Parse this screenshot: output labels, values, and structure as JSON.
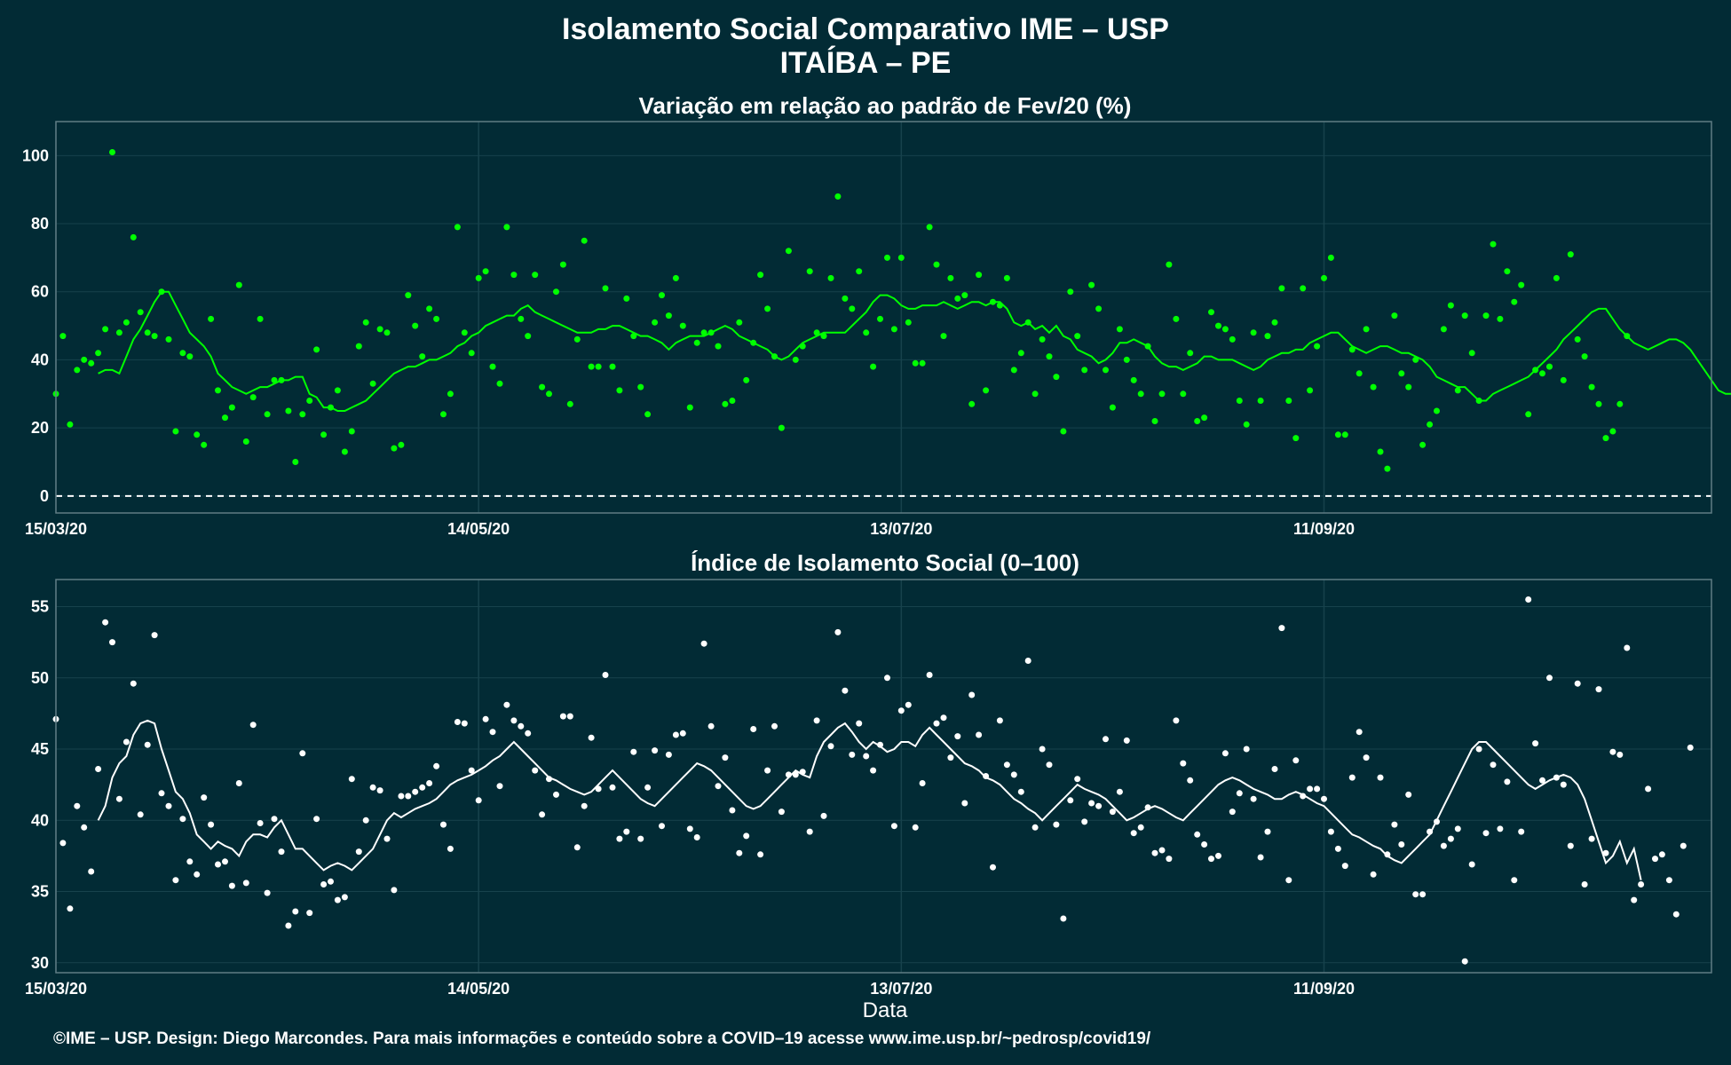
{
  "header": {
    "title_line1": "Isolamento Social Comparativo IME – USP",
    "title_line2": "ITAÍBA – PE"
  },
  "footer": {
    "caption": "©IME – USP. Design: Diego Marcondes. Para mais informações e conteúdo sobre a COVID–19 acesse www.ime.usp.br/~pedrosp/covid19/"
  },
  "colors": {
    "background": "#022b35",
    "panel_border": "#5f7c84",
    "grid": "#17424c",
    "top_series": "#00ff00",
    "bottom_series": "#ffffff"
  },
  "chart_data": [
    {
      "type": "scatter",
      "title": "Variação em relação ao padrão de Fev/20 (%)",
      "xlabel": "",
      "ylabel": "",
      "x_start": "15/03/20",
      "x_end": "05/11/20",
      "x_ticks": [
        "15/03/20",
        "14/05/20",
        "13/07/20",
        "11/09/20"
      ],
      "ylim": [
        -5,
        110
      ],
      "y_ticks": [
        0,
        20,
        40,
        60,
        80,
        100
      ],
      "reference_line": {
        "y": 0,
        "style": "dashed"
      },
      "grid": true,
      "legend": "none",
      "series": [
        {
          "kind": "points",
          "values": [
            30,
            47,
            21,
            37,
            40,
            39,
            42,
            49,
            101,
            48,
            51,
            76,
            54,
            48,
            47,
            60,
            46,
            19,
            42,
            41,
            18,
            15,
            52,
            31,
            23,
            26,
            62,
            16,
            29,
            52,
            24,
            34,
            34,
            25,
            10,
            24,
            28,
            43,
            18,
            26,
            31,
            13,
            19,
            44,
            51,
            33,
            49,
            48,
            14,
            15,
            59,
            50,
            41,
            55,
            52,
            24,
            30,
            79,
            48,
            42,
            64,
            66,
            38,
            33,
            79,
            65,
            52,
            47,
            65,
            32,
            30,
            60,
            68,
            27,
            46,
            75,
            38,
            38,
            61,
            38,
            31,
            58,
            47,
            32,
            24,
            51,
            59,
            53,
            64,
            50,
            26,
            45,
            48,
            48,
            44,
            27,
            28,
            51,
            34,
            45,
            65,
            55,
            41,
            20,
            72,
            40,
            44,
            66,
            48,
            47,
            64,
            88,
            58,
            55,
            66,
            48,
            38,
            52,
            70,
            49,
            70,
            51,
            39,
            39,
            79,
            68,
            47,
            64,
            58,
            59,
            27,
            65,
            31,
            57,
            56,
            64,
            37,
            42,
            51,
            30,
            46,
            41,
            35,
            19,
            60,
            47,
            37,
            62,
            55,
            37,
            26,
            49,
            40,
            34,
            30,
            44,
            22,
            30,
            68,
            52,
            30,
            42,
            22,
            23,
            54,
            50,
            49,
            46,
            28,
            21,
            48,
            28,
            47,
            51,
            61,
            28,
            17,
            61,
            31,
            44,
            64,
            70,
            18,
            18,
            43,
            36,
            49,
            32,
            13,
            8,
            53,
            36,
            32,
            40,
            15,
            21,
            25,
            49,
            56,
            31,
            53,
            42,
            28,
            53,
            74,
            52,
            66,
            57,
            62,
            24,
            37,
            36,
            38,
            64,
            34,
            71,
            46,
            41,
            32,
            27,
            17,
            19,
            27,
            47
          ]
        },
        {
          "kind": "moving_average",
          "values": [
            36,
            37,
            37,
            36,
            41,
            46,
            49,
            53,
            57,
            60,
            60,
            56,
            52,
            48,
            46,
            44,
            41,
            36,
            34,
            32,
            31,
            30,
            31,
            32,
            32,
            33,
            34,
            34,
            35,
            35,
            30,
            29,
            26,
            26,
            25,
            25,
            26,
            27,
            28,
            30,
            32,
            34,
            36,
            37,
            38,
            38,
            39,
            40,
            40,
            41,
            42,
            44,
            45,
            47,
            48,
            50,
            51,
            52,
            53,
            53,
            55,
            56,
            54,
            53,
            52,
            51,
            50,
            49,
            48,
            48,
            48,
            49,
            49,
            50,
            50,
            49,
            48,
            47,
            47,
            46,
            45,
            43,
            45,
            46,
            47,
            47,
            47,
            48,
            49,
            50,
            49,
            47,
            46,
            45,
            44,
            43,
            41,
            40,
            41,
            43,
            45,
            46,
            47,
            48,
            48,
            48,
            48,
            50,
            52,
            54,
            57,
            59,
            59,
            58,
            56,
            55,
            55,
            56,
            56,
            56,
            57,
            56,
            55,
            56,
            57,
            57,
            56,
            57,
            57,
            55,
            51,
            50,
            51,
            49,
            50,
            48,
            50,
            47,
            46,
            43,
            42,
            41,
            39,
            40,
            42,
            45,
            45,
            46,
            45,
            44,
            41,
            39,
            38,
            38,
            37,
            38,
            39,
            41,
            41,
            40,
            40,
            40,
            39,
            38,
            37,
            38,
            40,
            41,
            42,
            42,
            43,
            43,
            45,
            46,
            47,
            48,
            48,
            46,
            44,
            43,
            42,
            43,
            44,
            44,
            43,
            42,
            42,
            41,
            40,
            38,
            35,
            34,
            33,
            32,
            32,
            30,
            28,
            28,
            30,
            31,
            32,
            33,
            34,
            35,
            37,
            39,
            41,
            43,
            46,
            48,
            50,
            52,
            54,
            55,
            55,
            52,
            49,
            47,
            45,
            44,
            43,
            44,
            45,
            46,
            46,
            45,
            43,
            40,
            37,
            34,
            31,
            30,
            30,
            31,
            31,
            33
          ]
        }
      ]
    },
    {
      "type": "scatter",
      "title": "Índice de Isolamento Social (0–100)",
      "xlabel": "Data",
      "ylabel": "",
      "x_start": "15/03/20",
      "x_end": "05/11/20",
      "x_ticks": [
        "15/03/20",
        "14/05/20",
        "13/07/20",
        "11/09/20"
      ],
      "ylim": [
        29.3,
        56.9
      ],
      "y_ticks": [
        30,
        35,
        40,
        45,
        50,
        55
      ],
      "grid": true,
      "legend": "none",
      "series": [
        {
          "kind": "points",
          "values": [
            47.1,
            38.4,
            33.8,
            41.0,
            39.5,
            36.4,
            43.6,
            53.9,
            52.5,
            41.5,
            45.5,
            49.6,
            40.4,
            45.3,
            53.0,
            41.9,
            41.0,
            35.8,
            40.1,
            37.1,
            36.2,
            41.6,
            39.7,
            36.9,
            37.1,
            35.4,
            42.6,
            35.6,
            46.7,
            39.8,
            34.9,
            40.1,
            37.8,
            32.6,
            33.6,
            44.7,
            33.5,
            40.1,
            35.5,
            35.7,
            34.4,
            34.6,
            42.9,
            37.8,
            40.0,
            42.3,
            42.1,
            38.7,
            35.1,
            41.7,
            41.7,
            42.0,
            42.3,
            42.6,
            43.8,
            39.7,
            38.0,
            46.9,
            46.8,
            43.5,
            41.4,
            47.1,
            46.2,
            42.4,
            48.1,
            47.0,
            46.6,
            46.1,
            43.5,
            40.4,
            42.9,
            41.8,
            47.3,
            47.3,
            38.1,
            41.0,
            45.8,
            42.2,
            50.2,
            42.3,
            38.7,
            39.2,
            44.8,
            38.7,
            42.3,
            44.9,
            39.6,
            44.6,
            46.0,
            46.1,
            39.4,
            38.8,
            52.4,
            46.6,
            42.4,
            44.4,
            40.7,
            37.7,
            38.9,
            46.4,
            37.6,
            43.5,
            46.6,
            40.6,
            43.2,
            43.2,
            43.4,
            39.2,
            47.0,
            40.3,
            45.2,
            53.2,
            49.1,
            44.6,
            46.8,
            44.5,
            43.5,
            45.3,
            50.0,
            39.6,
            47.7,
            48.1,
            39.5,
            42.6,
            50.2,
            46.8,
            47.2,
            44.4,
            45.9,
            41.2,
            48.8,
            46.0,
            43.1,
            36.7,
            47.0,
            43.9,
            43.2,
            42.0,
            51.2,
            39.5,
            45.0,
            43.9,
            39.7,
            33.1,
            41.4,
            42.9,
            39.9,
            41.2,
            41.0,
            45.7,
            40.6,
            42.0,
            45.6,
            39.1,
            39.5,
            40.9,
            37.7,
            37.9,
            37.3,
            47.0,
            44.0,
            42.8,
            39.0,
            38.3,
            37.3,
            37.5,
            44.7,
            40.6,
            41.9,
            45.0,
            41.5,
            37.4,
            39.2,
            43.6,
            53.5,
            35.8,
            44.2,
            41.7,
            42.2,
            42.2,
            41.5,
            39.2,
            38.0,
            36.8,
            43.0,
            46.2,
            44.4,
            36.2,
            43.0,
            37.6,
            39.7,
            38.3,
            41.8,
            34.8,
            34.8,
            39.2,
            39.9,
            38.2,
            38.7,
            39.4,
            30.1,
            36.9,
            45.0,
            39.1,
            43.9,
            39.4,
            42.7,
            35.8,
            39.2,
            55.5,
            45.4,
            42.8,
            50.0,
            43.0,
            42.5,
            38.2,
            49.6,
            35.5,
            38.7,
            49.2,
            37.7,
            44.8,
            44.6,
            52.1,
            34.4,
            35.5,
            42.2,
            37.3,
            37.6,
            35.8,
            33.4,
            38.2,
            45.1
          ]
        },
        {
          "kind": "moving_average",
          "values": [
            40.0,
            41.0,
            43.0,
            44.0,
            44.5,
            46.0,
            46.8,
            47.0,
            46.8,
            45.0,
            43.5,
            42.0,
            41.5,
            40.5,
            39.0,
            38.5,
            38.0,
            38.5,
            38.2,
            38.0,
            37.5,
            38.5,
            39.0,
            39.0,
            38.8,
            39.5,
            40.0,
            39.0,
            38.0,
            38.0,
            37.5,
            37.0,
            36.5,
            36.8,
            37.0,
            36.8,
            36.5,
            37.0,
            37.5,
            38.0,
            39.0,
            40.0,
            40.5,
            40.2,
            40.5,
            40.8,
            41.0,
            41.2,
            41.5,
            42.0,
            42.5,
            42.8,
            43.0,
            43.2,
            43.5,
            43.8,
            44.2,
            44.5,
            45.0,
            45.5,
            45.0,
            44.5,
            44.0,
            43.5,
            43.0,
            42.8,
            42.5,
            42.2,
            42.0,
            41.8,
            42.0,
            42.5,
            43.0,
            43.5,
            43.0,
            42.5,
            42.0,
            41.5,
            41.2,
            41.0,
            41.5,
            42.0,
            42.5,
            43.0,
            43.5,
            44.0,
            43.8,
            43.5,
            43.0,
            42.5,
            42.0,
            41.5,
            41.0,
            40.8,
            41.0,
            41.5,
            42.0,
            42.5,
            43.0,
            43.5,
            43.2,
            43.0,
            44.5,
            45.5,
            46.0,
            46.5,
            46.8,
            46.2,
            45.5,
            45.0,
            45.5,
            45.2,
            44.8,
            45.0,
            45.5,
            45.5,
            45.2,
            46.0,
            46.5,
            46.0,
            45.5,
            45.0,
            44.5,
            44.0,
            43.8,
            43.5,
            43.0,
            42.8,
            42.5,
            42.0,
            41.5,
            41.2,
            40.8,
            40.5,
            40.0,
            40.5,
            41.0,
            41.5,
            42.0,
            42.5,
            42.2,
            42.0,
            41.8,
            41.5,
            41.0,
            40.5,
            40.0,
            40.2,
            40.5,
            40.8,
            41.0,
            40.8,
            40.5,
            40.2,
            40.0,
            40.5,
            41.0,
            41.5,
            42.0,
            42.5,
            42.8,
            43.0,
            42.8,
            42.5,
            42.2,
            42.0,
            41.8,
            41.5,
            41.5,
            41.8,
            42.0,
            41.8,
            41.5,
            41.2,
            41.0,
            40.5,
            40.0,
            39.5,
            39.0,
            38.8,
            38.5,
            38.2,
            38.0,
            37.5,
            37.2,
            37.0,
            37.5,
            38.0,
            38.5,
            39.0,
            40.0,
            41.0,
            42.0,
            43.0,
            44.0,
            45.0,
            45.5,
            45.5,
            45.0,
            44.5,
            44.0,
            43.5,
            43.0,
            42.5,
            42.2,
            42.5,
            42.8,
            43.0,
            43.2,
            43.0,
            42.5,
            41.5,
            40.0,
            38.5,
            37.0,
            37.5,
            38.5,
            37.0,
            38.0,
            35.8
          ]
        }
      ]
    }
  ]
}
